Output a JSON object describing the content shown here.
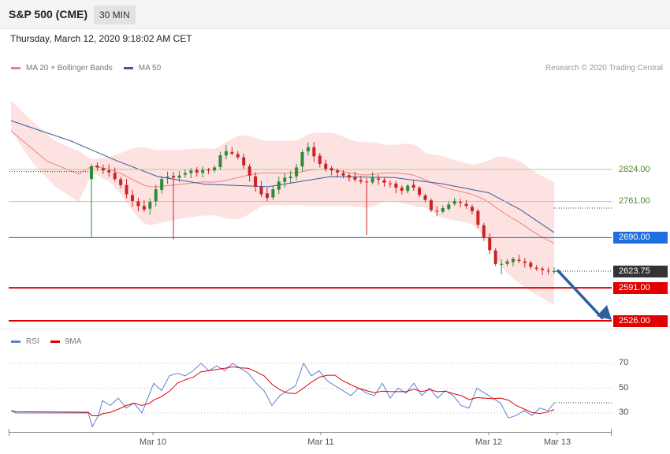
{
  "header": {
    "title": "S&P 500 (CME)",
    "timeframe": "30 MIN"
  },
  "datetime": "Thursday, March 12, 2020 9:18:02 AM CET",
  "legend": {
    "ma20_label": "MA 20 + Bollinger Bands",
    "ma50_label": "MA 50",
    "ma20_color": "#f08080",
    "ma50_color": "#3a5a9a"
  },
  "copyright": "Research © 2020 Trading Central",
  "rsi_legend": {
    "rsi_label": "RSI",
    "ma9_label": "9MA",
    "rsi_color": "#5b7fdc",
    "ma9_color": "#dd0000"
  },
  "colors": {
    "up": "#2e8b3a",
    "down": "#cc2222",
    "pivot": "#1e6fe0",
    "support": "#e00000",
    "resistance": "#b5cf8a",
    "current": "#333333",
    "arrow": "#2f5f9f",
    "band": "#fde2e2"
  },
  "chart_data": [
    {
      "type": "candlestick",
      "title": "S&P 500 (CME)",
      "timeframe": "30 MIN",
      "x_ticks": [
        "Mar 10",
        "Mar 11",
        "Mar 12",
        "Mar 13"
      ],
      "ylim": [
        2500,
        2960
      ],
      "current_price": "2623.75",
      "levels": [
        {
          "name": "resistance-2",
          "value": "2824.00",
          "kind": "resistance"
        },
        {
          "name": "resistance-1",
          "value": "2761.00",
          "kind": "resistance"
        },
        {
          "name": "pivot",
          "value": "2690.00",
          "kind": "pivot"
        },
        {
          "name": "support-1",
          "value": "2591.00",
          "kind": "support"
        },
        {
          "name": "support-2",
          "value": "2526.00",
          "kind": "support"
        }
      ],
      "series": [
        {
          "name": "MA 20 + Bollinger Bands"
        },
        {
          "name": "MA 50"
        }
      ],
      "close": [
        2830,
        2828,
        2822,
        2818,
        2805,
        2793,
        2775,
        2762,
        2752,
        2745,
        2760,
        2785,
        2805,
        2810,
        2808,
        2812,
        2817,
        2822,
        2818,
        2823,
        2822,
        2828,
        2852,
        2860,
        2855,
        2848,
        2832,
        2812,
        2790,
        2775,
        2768,
        2785,
        2800,
        2808,
        2810,
        2828,
        2858,
        2868,
        2850,
        2835,
        2825,
        2822,
        2818,
        2812,
        2808,
        2804,
        2800,
        2800,
        2808,
        2804,
        2798,
        2795,
        2788,
        2782,
        2792,
        2788,
        2774,
        2764,
        2744,
        2742,
        2748,
        2755,
        2762,
        2758,
        2752,
        2742,
        2715,
        2690,
        2665,
        2638,
        2638,
        2643,
        2648,
        2644,
        2640,
        2632,
        2628,
        2626,
        2624,
        2624
      ]
    },
    {
      "type": "line",
      "title": "RSI",
      "y_ticks": [
        70,
        50,
        30
      ],
      "series": [
        {
          "name": "RSI"
        },
        {
          "name": "9MA"
        }
      ]
    }
  ]
}
